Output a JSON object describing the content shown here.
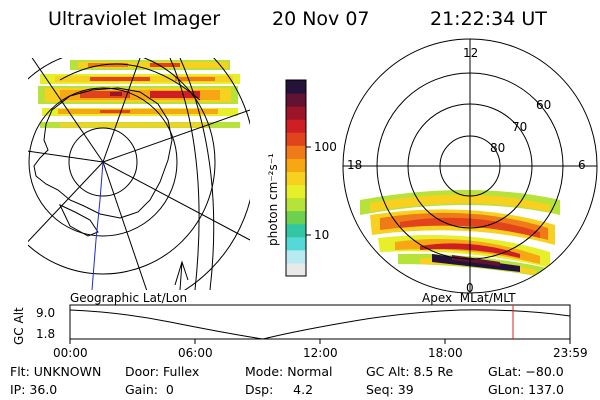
{
  "header": {
    "instrument": "Ultraviolet Imager",
    "date": "20 Nov 07",
    "time": "21:22:34 UT"
  },
  "colorbar": {
    "unit_label": "photon cm⁻²s⁻¹",
    "ticks": [
      "100",
      "10"
    ],
    "colors": [
      "#e9e9e9",
      "#b8eaf2",
      "#55d8d8",
      "#33c6a2",
      "#6ed04f",
      "#b6e23a",
      "#e7ef2b",
      "#f8d020",
      "#f7a614",
      "#ef7a17",
      "#e1431c",
      "#cd1f24",
      "#9b1428",
      "#621232",
      "#25123a"
    ]
  },
  "left_map": {
    "caption": "Geographic Lat/Lon"
  },
  "right_map": {
    "caption": "Apex  MLat/MLT",
    "mlt_labels": {
      "top": "12",
      "left": "18",
      "right": "6",
      "bottom": "0"
    },
    "lat_labels": [
      "60",
      "70",
      "80"
    ]
  },
  "altitude_plot": {
    "ylabel": "GC Alt",
    "y_ticks": [
      "9.0",
      "1.8"
    ],
    "x_ticks": [
      "00:00",
      "06:00",
      "12:00",
      "18:00",
      "23:59"
    ],
    "marker_color": "#e02020"
  },
  "info": {
    "flt": "Flt: UNKNOWN",
    "ip": "IP: 36.0",
    "door": "Door: Fullex",
    "gain": "Gain:  0",
    "mode": "Mode: Normal",
    "dsp": "Dsp:     4.2",
    "gcalt": "GC Alt: 8.5 Re",
    "seq": "Seq: 39",
    "glat": "GLat: −80.0",
    "glon": "GLon: 137.0"
  }
}
